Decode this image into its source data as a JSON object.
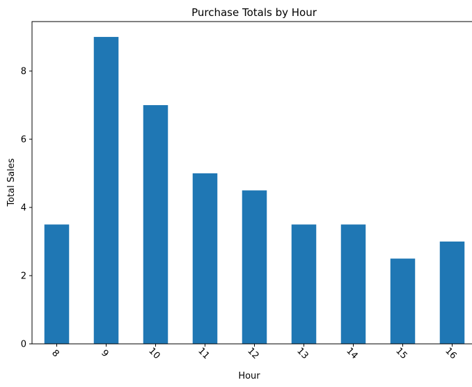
{
  "chart_data": {
    "type": "bar",
    "title": "Purchase Totals by Hour",
    "xlabel": "Hour",
    "ylabel": "Total Sales",
    "categories": [
      "8",
      "9",
      "10",
      "11",
      "12",
      "13",
      "14",
      "15",
      "16"
    ],
    "values": [
      3.5,
      9,
      7,
      5,
      4.5,
      3.5,
      3.5,
      2.5,
      3
    ],
    "ylim": [
      0,
      9.45
    ],
    "yticks": [
      "0",
      "2",
      "4",
      "6",
      "8"
    ],
    "bar_color": "#1f77b4",
    "grid": false,
    "legend": false
  }
}
